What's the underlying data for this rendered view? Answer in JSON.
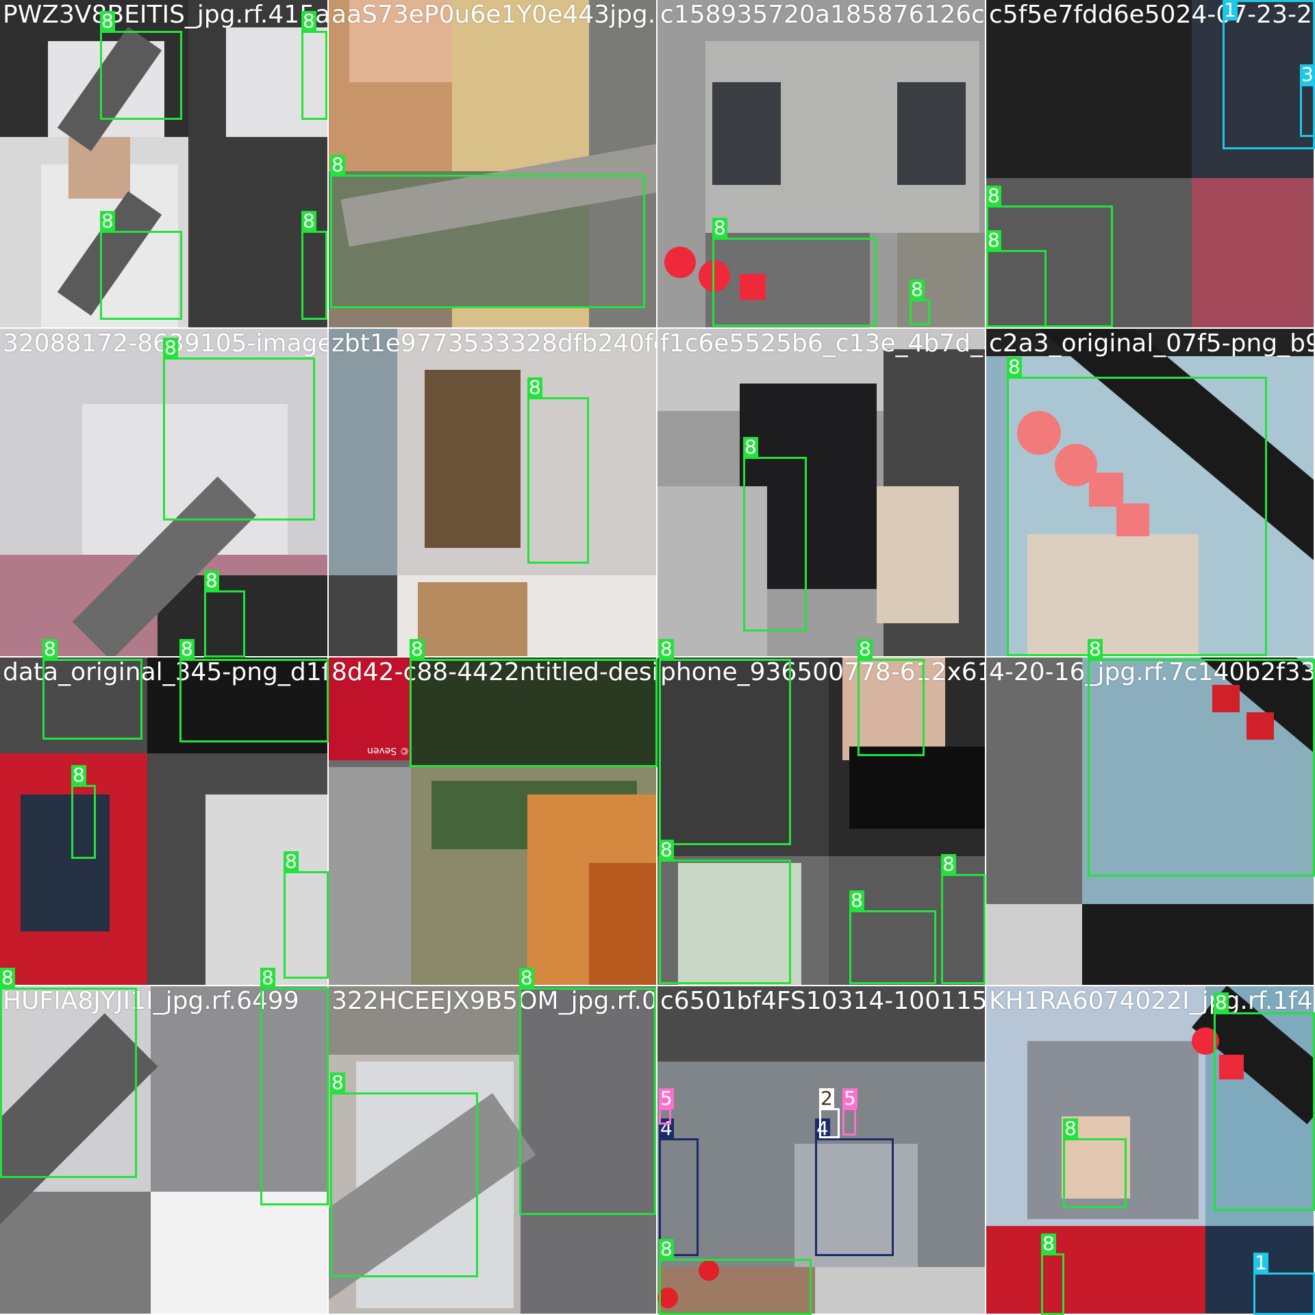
{
  "colors": {
    "class_8": "#22e33a",
    "class_1": "#1ec8e8",
    "class_3": "#1ec8e8",
    "class_2": "#ffffff",
    "class_4": "#1a2a6b",
    "class_5": "#ff6fd0"
  },
  "tiles": [
    {
      "filename": "PWZ3V8BEITIS_jpg.rf.415aa3"
    },
    {
      "filename": "aaS73eP0u6e1Y0e443jpg.rf.c36a"
    },
    {
      "filename": "c158935720a185876126cbbc"
    },
    {
      "filename": "c5f5e7fdd6e5024-07-23-232"
    },
    {
      "filename": "32088172-8639105-image-a"
    },
    {
      "filename": "zbt1e9773533328dfb240fcf0"
    },
    {
      "filename": "f1c6e5525b6_c13e_4b7d_a"
    },
    {
      "filename": "c2a3_original_07f5-png_b9ec"
    },
    {
      "filename": "data_original_345-png_d1f5"
    },
    {
      "filename": "8d42-c88-4422ntitled-desig"
    },
    {
      "filename": "phone_936500778-612x612"
    },
    {
      "filename": "4-20-16_jpg.rf.7c140b2f33"
    },
    {
      "filename": "HUFIA8JYJI1I_jpg.rf.6499"
    },
    {
      "filename": "322HCEEJX9B5OM_jpg.rf.052"
    },
    {
      "filename": "c6501bf4FS10314-100115-22"
    },
    {
      "filename": "KH1RA6074022I_jpg.rf.1f4"
    }
  ],
  "labels": {
    "eight": "8",
    "one": "1",
    "two": "2",
    "three": "3",
    "four": "4",
    "five": "5"
  },
  "watermark": "© Seven"
}
